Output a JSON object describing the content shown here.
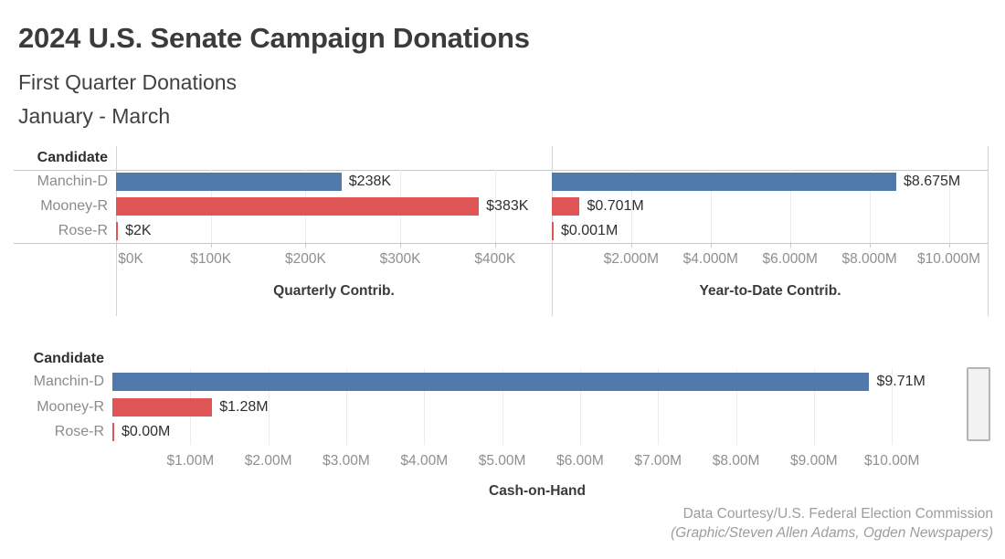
{
  "header": {
    "title": "2024 U.S. Senate Campaign Donations",
    "subtitle1": "First Quarter Donations",
    "subtitle2": "January - March"
  },
  "colors": {
    "democrat_blue": "#4f7aab",
    "republican_red": "#e05556",
    "grid": "#ececec",
    "axis_line": "#c6c6c6"
  },
  "chart_data": [
    {
      "id": "quarterly-contrib",
      "type": "bar",
      "orientation": "horizontal",
      "row_header": "Candidate",
      "categories": [
        "Manchin-D",
        "Mooney-R",
        "Rose-R"
      ],
      "values": [
        238000,
        383000,
        2000
      ],
      "value_labels": [
        "$238K",
        "$383K",
        "$2K"
      ],
      "colors": [
        "#4f7aab",
        "#e05556",
        "#e05556"
      ],
      "xlim": [
        0,
        460000
      ],
      "ticks": [
        {
          "v": 0,
          "label": "$0K",
          "nudge": 16
        },
        {
          "v": 100000,
          "label": "$100K"
        },
        {
          "v": 200000,
          "label": "$200K"
        },
        {
          "v": 300000,
          "label": "$300K"
        },
        {
          "v": 400000,
          "label": "$400K"
        }
      ],
      "gridlines": [
        100000,
        200000,
        300000,
        400000
      ],
      "xlabel": "Quarterly Contrib."
    },
    {
      "id": "year-to-date-contrib",
      "type": "bar",
      "orientation": "horizontal",
      "row_header": "Candidate",
      "categories": [
        "Manchin-D",
        "Mooney-R",
        "Rose-R"
      ],
      "values": [
        8675000,
        701000,
        1000
      ],
      "value_labels": [
        "$8.675M",
        "$0.701M",
        "$0.001M"
      ],
      "colors": [
        "#4f7aab",
        "#e05556",
        "#e05556"
      ],
      "xlim": [
        0,
        11000000
      ],
      "ticks": [
        {
          "v": 2000000,
          "label": "$2.000M"
        },
        {
          "v": 4000000,
          "label": "$4.000M"
        },
        {
          "v": 6000000,
          "label": "$6.000M"
        },
        {
          "v": 8000000,
          "label": "$8.000M"
        },
        {
          "v": 10000000,
          "label": "$10.000M"
        }
      ],
      "gridlines": [
        2000000,
        4000000,
        6000000,
        8000000,
        10000000
      ],
      "xlabel": "Year-to-Date Contrib."
    },
    {
      "id": "cash-on-hand",
      "type": "bar",
      "orientation": "horizontal",
      "row_header": "Candidate",
      "categories": [
        "Manchin-D",
        "Mooney-R",
        "Rose-R"
      ],
      "values": [
        9710000,
        1280000,
        0
      ],
      "value_labels": [
        "$9.71M",
        "$1.28M",
        "$0.00M"
      ],
      "colors": [
        "#4f7aab",
        "#e05556",
        "#e05556"
      ],
      "xlim": [
        0,
        10900000
      ],
      "ticks": [
        {
          "v": 1000000,
          "label": "$1.00M"
        },
        {
          "v": 2000000,
          "label": "$2.00M"
        },
        {
          "v": 3000000,
          "label": "$3.00M"
        },
        {
          "v": 4000000,
          "label": "$4.00M"
        },
        {
          "v": 5000000,
          "label": "$5.00M"
        },
        {
          "v": 6000000,
          "label": "$6.00M"
        },
        {
          "v": 7000000,
          "label": "$7.00M"
        },
        {
          "v": 8000000,
          "label": "$8.00M"
        },
        {
          "v": 9000000,
          "label": "$9.00M"
        },
        {
          "v": 10000000,
          "label": "$10.00M"
        }
      ],
      "gridlines": [
        1000000,
        2000000,
        3000000,
        4000000,
        5000000,
        6000000,
        7000000,
        8000000,
        9000000,
        10000000
      ],
      "xlabel": "Cash-on-Hand"
    }
  ],
  "footer": {
    "credit1": "Data Courtesy/U.S. Federal Election Commission",
    "credit2": "(Graphic/Steven Allen Adams, Ogden Newspapers)"
  }
}
